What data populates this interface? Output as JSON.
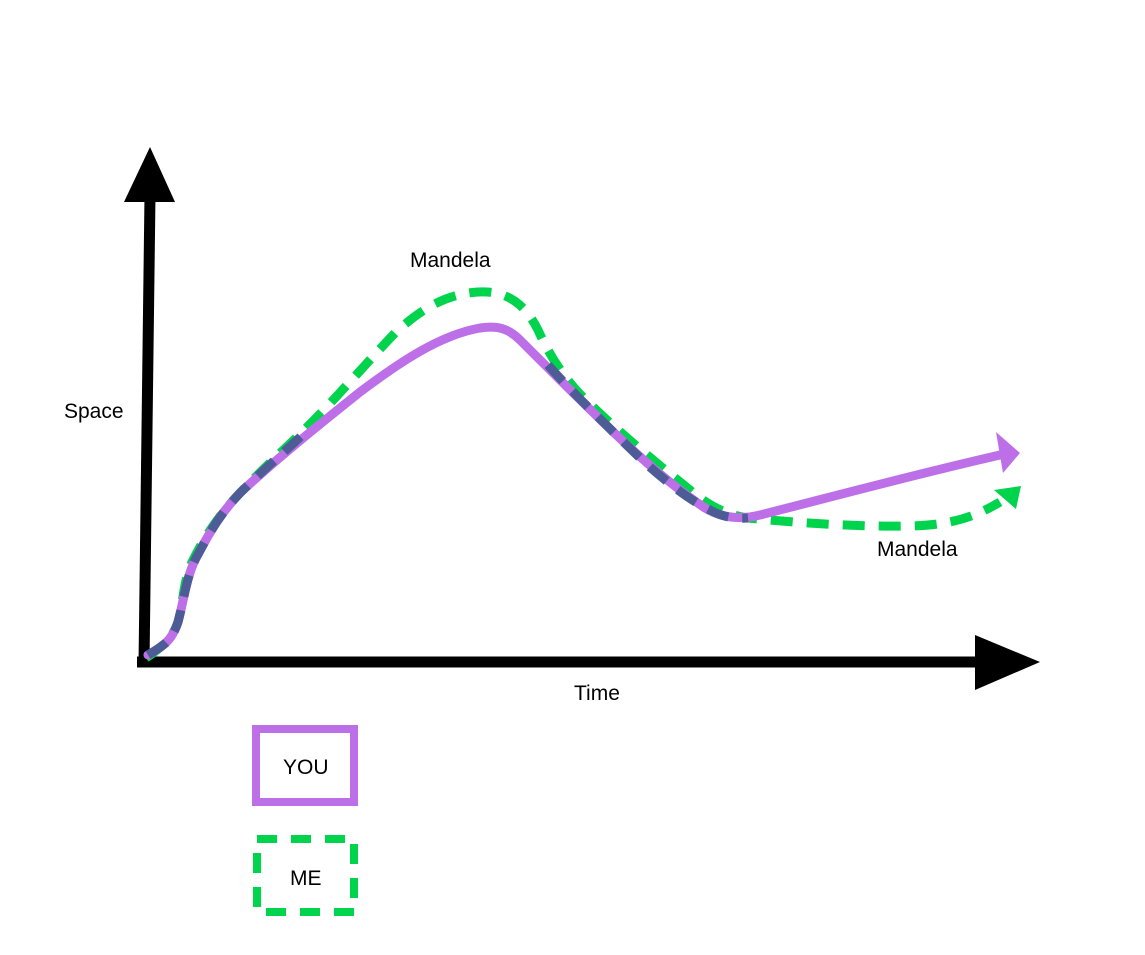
{
  "axes": {
    "y_label": "Space",
    "x_label": "Time",
    "color": "#000000"
  },
  "curves": {
    "you": {
      "legend": "YOU",
      "color": "#bd6fe8",
      "style": "solid"
    },
    "me": {
      "legend": "ME",
      "color": "#00d44c",
      "style": "dashed"
    },
    "overlap_color": "#4d5c97"
  },
  "annotations": {
    "peak_label": "Mandela",
    "tail_label": "Mandela"
  }
}
